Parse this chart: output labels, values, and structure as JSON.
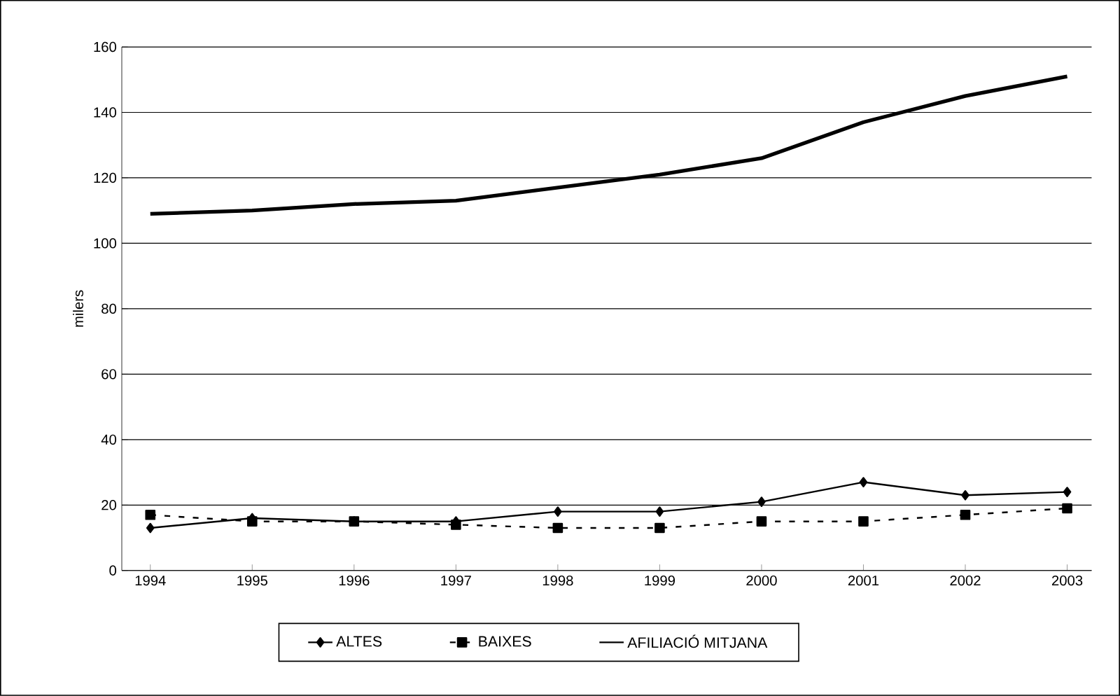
{
  "chart_data": {
    "type": "line",
    "ylabel": "milers",
    "categories": [
      "1994",
      "1995",
      "1996",
      "1997",
      "1998",
      "1999",
      "2000",
      "2001",
      "2002",
      "2003"
    ],
    "series": [
      {
        "name": "ALTES",
        "color": "#000000",
        "marker": "diamond",
        "line_style": "solid",
        "values": [
          13,
          16,
          15,
          15,
          18,
          18,
          21,
          27,
          23,
          24
        ]
      },
      {
        "name": "BAIXES",
        "color": "#000000",
        "marker": "square",
        "line_style": "dashed",
        "values": [
          17,
          15,
          15,
          14,
          13,
          13,
          15,
          15,
          17,
          19
        ]
      },
      {
        "name": "AFILIACIÓ MITJANA",
        "color": "#000000",
        "marker": "none",
        "line_style": "solid",
        "values": [
          109,
          110,
          112,
          113,
          117,
          121,
          126,
          137,
          145,
          151
        ]
      }
    ],
    "ylim": [
      0,
      160
    ],
    "yticks": [
      0,
      20,
      40,
      60,
      80,
      100,
      120,
      140,
      160
    ],
    "grid": "y",
    "legend": "bottom"
  }
}
